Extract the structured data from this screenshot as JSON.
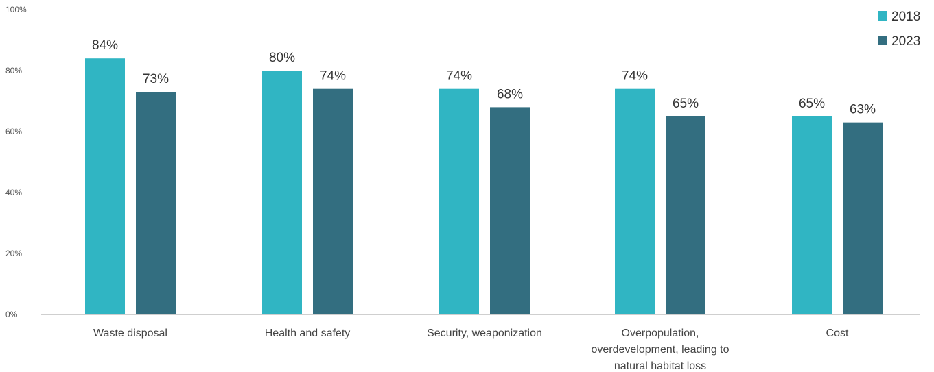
{
  "chart_data": {
    "type": "bar",
    "title": "",
    "xlabel": "",
    "ylabel": "",
    "ylim": [
      0,
      100
    ],
    "yticks": [
      0,
      20,
      40,
      60,
      80,
      100
    ],
    "ytick_labels": [
      "0%",
      "20%",
      "40%",
      "60%",
      "80%",
      "100%"
    ],
    "grid": false,
    "legend_position": "top-right",
    "categories": [
      [
        "Waste disposal"
      ],
      [
        "Health and safety"
      ],
      [
        "Security, weaponization"
      ],
      [
        "Overpopulation,",
        "overdevelopment, leading to",
        "natural habitat loss"
      ],
      [
        "Cost"
      ]
    ],
    "series": [
      {
        "name": "2018",
        "color": "#30b5c3",
        "values": [
          84,
          80,
          74,
          74,
          65
        ],
        "value_labels": [
          "84%",
          "80%",
          "74%",
          "74%",
          "65%"
        ]
      },
      {
        "name": "2023",
        "color": "#336e80",
        "values": [
          73,
          74,
          68,
          65,
          63
        ],
        "value_labels": [
          "73%",
          "74%",
          "68%",
          "65%",
          "63%"
        ]
      }
    ]
  }
}
